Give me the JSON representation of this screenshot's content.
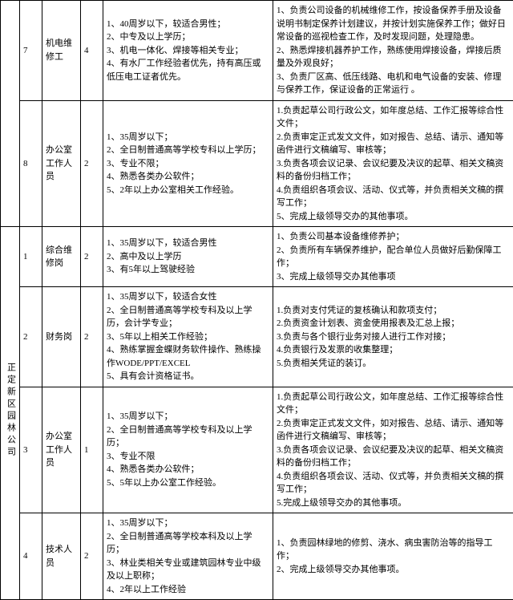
{
  "table": {
    "group1": {
      "row1": {
        "num": "7",
        "position": "机电维修工",
        "count": "4",
        "req": [
          "1、40周岁以下，较适合男性；",
          "2、中专及以上学历；",
          "3、机电一体化、焊接等相关专业；",
          "4、有水厂工作经验者优先，持有高压或低压电工证者优先。"
        ],
        "duty": [
          "1、负责公司设备的机械维修工作，按设备保养手册及设备说明书制定保养计划建议，并按计划实施保养工作；做好日常设备的巡视检查工作，及时发现问题，处理隐患。",
          "2、熟悉焊接机器养护工作，熟练使用焊接设备，焊接后质量及外观良好；",
          "3、负责厂区高、低压线路、电机和电气设备的安装、修理与保养工作，保证设备的正常运行 。"
        ]
      },
      "row2": {
        "num": "8",
        "position": "办公室工作人员",
        "count": "2",
        "req": [
          "1、35周岁以下；",
          "2、全日制普通高等学校专科以上学历；",
          "3、专业不限；",
          "4、熟悉各类办公软件；",
          "5、2年以上办公室相关工作经验。"
        ],
        "duty": [
          "1.负责起草公司行政公文，如年度总结、工作汇报等综合性文件；",
          "2.负责审定正式发文文件，如对报告、总结、请示、通知等函件进行文稿编写、审核等；",
          "3.负责各项会议记录、会议纪要及决议的起草、相关文稿资料的备份归档工作；",
          "4.负责组织各项会议、活动、仪式等，并负责相关文稿的撰写工作；",
          "5、完成上级领导交办的其他事项。"
        ]
      }
    },
    "group2": {
      "company": "正定新区园林公司",
      "row1": {
        "num": "1",
        "position": "综合维修岗",
        "count": "2",
        "req": [
          "1、35周岁以下，较适合男性",
          "2、高中及以上学历",
          "3、有5年以上驾驶经验"
        ],
        "duty": [
          "1、负责公司基本设备维修养护；",
          "2、负责所有车辆保养维护，配合单位人员做好后勤保障工作；",
          "3、完成上级领导交办其他事项"
        ]
      },
      "row2": {
        "num": "2",
        "position": "财务岗",
        "count": "2",
        "req": [
          "1、35周岁以下，较适合女性",
          "2、全日制普通高等学校专科及以上学历，会计学专业；",
          "3、5年以上相关工作经验；",
          "4、熟练掌握金蝶财务软件操作、熟练操作WODE/PPT/EXCEL",
          "5、具有会计资格证书。"
        ],
        "duty": [
          "1.负责对支付凭证的复核确认和款项支付；",
          "2.负责资金计划表、资金使用报表及汇总上报；",
          "3.负责与各个银行业务对接人进行工作对接；",
          "4.负责银行及发票的收集整理；",
          "5.负责相关凭证的装订。"
        ]
      },
      "row3": {
        "num": "3",
        "position": "办公室工作人员",
        "count": "1",
        "req": [
          "1、35周岁以下；",
          "2、全日制普通高等学校专科及以上学历；",
          "3、专业不限",
          "4、熟悉各类办公软件；",
          "5、5年以上办公室工作经验。"
        ],
        "duty": [
          "1.负责起草公司行政公文，如年度总结、工作汇报等综合性文件；",
          "2.负责审定正式发文文件，如对报告、总结、请示、通知等函件进行文稿编写、审核等；",
          "3.负责各项会议记录、会议纪要及决议的起草、相关文稿资料的备份归档工作；",
          "4.负责组织各项会议、活动、仪式等，并负责相关文稿的撰写工作；",
          "5.完成上级领导交办的其他事项。"
        ]
      },
      "row4": {
        "num": "4",
        "position": "技术人员",
        "count": "2",
        "req": [
          "1、35周岁以下；",
          "2、全日制普通高等学校本科及以上学历；",
          "3、林业类相关专业或建筑园林专业中级及以上职称；",
          "4、2年以上工作经验"
        ],
        "duty": [
          "1、负责园林绿地的修剪、浇水、病虫害防治等的指导工作；",
          "2、完成上级领导交办其他事项。"
        ]
      }
    }
  }
}
